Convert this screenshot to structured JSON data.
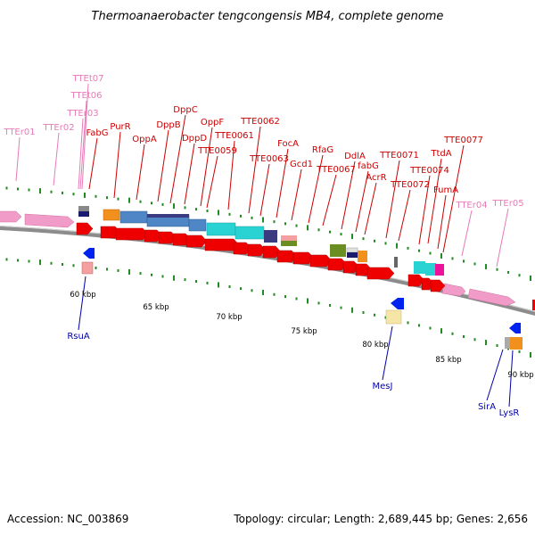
{
  "title": "Thermoanaerobacter tengcongensis MB4, complete genome",
  "footer": {
    "accession": "Accession: NC_003869",
    "summary": "Topology: circular; Length: 2,689,445 bp; Genes: 2,656"
  },
  "colors": {
    "red_gene": "#ee0000",
    "red_label": "#cc0000",
    "rna_label": "#e87ab8",
    "rna_feature": "#f19bc8",
    "minus_label": "#0000aa",
    "backbone": "#8c8c8c",
    "ticks": "#228b22"
  },
  "upper_labels": [
    {
      "id": "tte-r01",
      "text": "TTEr01",
      "color": "rna_label"
    },
    {
      "id": "tte-r02",
      "text": "TTEr02",
      "color": "rna_label"
    },
    {
      "id": "tte-r03",
      "text": "TTEr03",
      "color": "rna_label"
    },
    {
      "id": "tte-t06",
      "text": "TTEt06",
      "color": "rna_label"
    },
    {
      "id": "tte-t07",
      "text": "TTEt07",
      "color": "rna_label"
    },
    {
      "id": "fabg-1",
      "text": "FabG",
      "color": "red_label"
    },
    {
      "id": "purr",
      "text": "PurR",
      "color": "red_label"
    },
    {
      "id": "oppa",
      "text": "OppA",
      "color": "red_label"
    },
    {
      "id": "dppb",
      "text": "DppB",
      "color": "red_label"
    },
    {
      "id": "dppc",
      "text": "DppC",
      "color": "red_label"
    },
    {
      "id": "dppd",
      "text": "DppD",
      "color": "red_label"
    },
    {
      "id": "oppf",
      "text": "OppF",
      "color": "red_label"
    },
    {
      "id": "tte0059",
      "text": "TTE0059",
      "color": "red_label"
    },
    {
      "id": "tte0061",
      "text": "TTE0061",
      "color": "red_label"
    },
    {
      "id": "tte0062",
      "text": "TTE0062",
      "color": "red_label"
    },
    {
      "id": "tte0063",
      "text": "TTE0063",
      "color": "red_label"
    },
    {
      "id": "foca",
      "text": "FocA",
      "color": "red_label"
    },
    {
      "id": "gcd1",
      "text": "Gcd1",
      "color": "red_label"
    },
    {
      "id": "rfag",
      "text": "RfaG",
      "color": "red_label"
    },
    {
      "id": "tte0067",
      "text": "TTE0067",
      "color": "red_label"
    },
    {
      "id": "ddla",
      "text": "DdlA",
      "color": "red_label"
    },
    {
      "id": "fabg-2",
      "text": "fabG",
      "color": "red_label"
    },
    {
      "id": "acrr",
      "text": "AcrR",
      "color": "red_label"
    },
    {
      "id": "tte0071",
      "text": "TTE0071",
      "color": "red_label"
    },
    {
      "id": "tte0072",
      "text": "TTE0072",
      "color": "red_label"
    },
    {
      "id": "ttda",
      "text": "TtdA",
      "color": "red_label"
    },
    {
      "id": "tte0074",
      "text": "TTE0074",
      "color": "red_label"
    },
    {
      "id": "tte0077",
      "text": "TTE0077",
      "color": "red_label"
    },
    {
      "id": "fuma",
      "text": "FumA",
      "color": "red_label"
    },
    {
      "id": "tte-r04",
      "text": "TTEr04",
      "color": "rna_label"
    },
    {
      "id": "tte-r05",
      "text": "TTEr05",
      "color": "rna_label"
    }
  ],
  "lower_labels": [
    {
      "id": "rsua",
      "text": "RsuA"
    },
    {
      "id": "mesj",
      "text": "MesJ"
    },
    {
      "id": "sira",
      "text": "SirA"
    },
    {
      "id": "lysr",
      "text": "LysR"
    }
  ],
  "scale_kbp": [
    60,
    65,
    70,
    75,
    80,
    85,
    90
  ],
  "scale_unit": "kbp"
}
